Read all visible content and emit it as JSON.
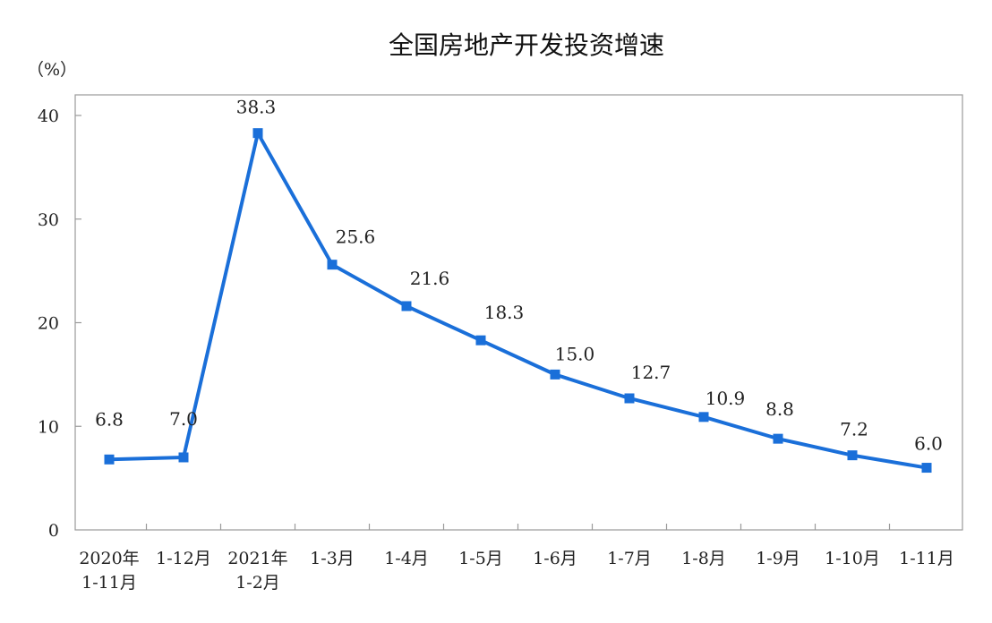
{
  "chart_data": {
    "type": "line",
    "title": "全国房地产开发投资增速",
    "ylabel": "（%）",
    "xlabel": "",
    "ylim": [
      0,
      40
    ],
    "yticks": [
      0,
      10,
      20,
      30,
      40
    ],
    "grid": false,
    "legend": "none",
    "categories": [
      [
        "2020年",
        "1-11月"
      ],
      [
        "1-12月"
      ],
      [
        "2021年",
        "1-2月"
      ],
      [
        "1-3月"
      ],
      [
        "1-4月"
      ],
      [
        "1-5月"
      ],
      [
        "1-6月"
      ],
      [
        "1-7月"
      ],
      [
        "1-8月"
      ],
      [
        "1-9月"
      ],
      [
        "1-10月"
      ],
      [
        "1-11月"
      ]
    ],
    "values": [
      6.8,
      7.0,
      38.3,
      25.6,
      21.6,
      18.3,
      15.0,
      12.7,
      10.9,
      8.8,
      7.2,
      6.0
    ],
    "data_labels": [
      "6.8",
      "7.0",
      "38.3",
      "25.6",
      "21.6",
      "18.3",
      "15.0",
      "12.7",
      "10.9",
      "8.8",
      "7.2",
      "6.0"
    ],
    "line_color": "#1a6fd9"
  }
}
